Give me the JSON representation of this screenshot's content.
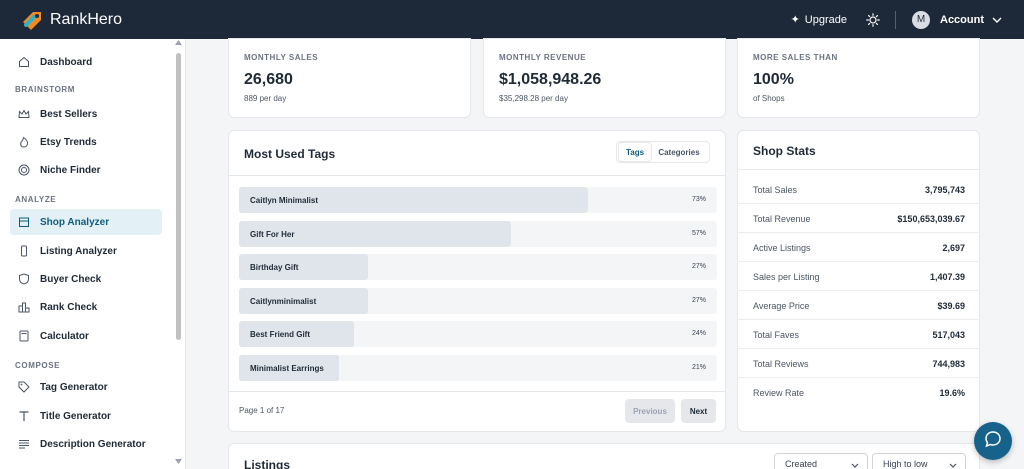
{
  "app": {
    "brand": "RankHero"
  },
  "header": {
    "upgrade_label": "Upgrade",
    "avatar_initial": "M",
    "account_label": "Account"
  },
  "sidebar": {
    "dashboard": "Dashboard",
    "sections": {
      "brainstorm": "BRAINSTORM",
      "analyze": "ANALYZE",
      "compose": "COMPOSE"
    },
    "items": {
      "best_sellers": "Best Sellers",
      "etsy_trends": "Etsy Trends",
      "niche_finder": "Niche Finder",
      "shop_analyzer": "Shop Analyzer",
      "listing_analyzer": "Listing Analyzer",
      "buyer_check": "Buyer Check",
      "rank_check": "Rank Check",
      "calculator": "Calculator",
      "tag_generator": "Tag Generator",
      "title_generator": "Title Generator",
      "description_generator": "Description Generator"
    },
    "active": "shop_analyzer"
  },
  "stats": [
    {
      "label": "MONTHLY SALES",
      "value": "26,680",
      "sub": "889 per day"
    },
    {
      "label": "MONTHLY REVENUE",
      "value": "$1,058,948.26",
      "sub": "$35,298.28 per day"
    },
    {
      "label": "MORE SALES THAN",
      "value": "100%",
      "sub": "of Shops"
    }
  ],
  "tags_card": {
    "title": "Most Used Tags",
    "toggle": {
      "tags": "Tags",
      "categories": "Categories",
      "selected": "Tags"
    },
    "rows": [
      {
        "name": "Caitlyn Minimalist",
        "pct_label": "73%",
        "fraction": 0.73
      },
      {
        "name": "Gift For Her",
        "pct_label": "57%",
        "fraction": 0.57
      },
      {
        "name": "Birthday Gift",
        "pct_label": "27%",
        "fraction": 0.27
      },
      {
        "name": "Caitlynminimalist",
        "pct_label": "27%",
        "fraction": 0.27
      },
      {
        "name": "Best Friend Gift",
        "pct_label": "24%",
        "fraction": 0.24
      },
      {
        "name": "Minimalist Earrings",
        "pct_label": "21%",
        "fraction": 0.21
      }
    ],
    "page_info": "Page 1 of 17",
    "prev_label": "Previous",
    "next_label": "Next"
  },
  "shop_stats": {
    "title": "Shop Stats",
    "rows": [
      {
        "label": "Total Sales",
        "value": "3,795,743"
      },
      {
        "label": "Total Revenue",
        "value": "$150,653,039.67"
      },
      {
        "label": "Active Listings",
        "value": "2,697"
      },
      {
        "label": "Sales per Listing",
        "value": "1,407.39"
      },
      {
        "label": "Average Price",
        "value": "$39.69"
      },
      {
        "label": "Total Faves",
        "value": "517,043"
      },
      {
        "label": "Total Reviews",
        "value": "744,983"
      },
      {
        "label": "Review Rate",
        "value": "19.6%"
      }
    ]
  },
  "listings": {
    "title": "Listings",
    "sort_field": "Created",
    "sort_order": "High to low"
  },
  "colors": {
    "topbar": "#1d2939",
    "accent": "#0f5d7a",
    "chat_button": "#16628a",
    "active_nav": "#e3f0f5"
  }
}
